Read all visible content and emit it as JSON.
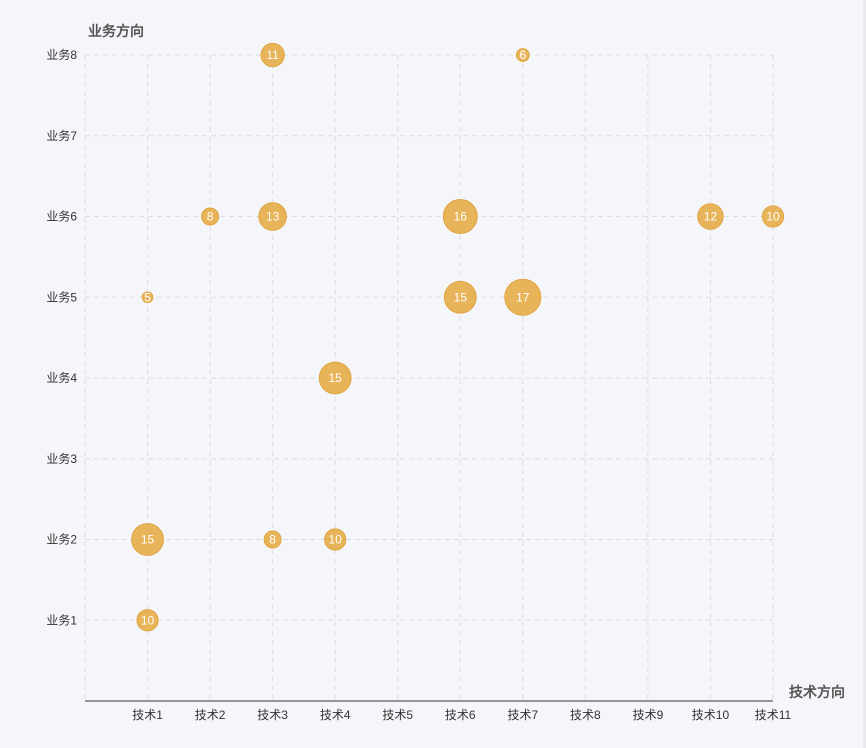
{
  "chart_data": {
    "type": "scatter",
    "title": "",
    "xlabel": "技术方向",
    "ylabel": "业务方向",
    "x_categories": [
      "技术1",
      "技术2",
      "技术3",
      "技术4",
      "技术5",
      "技术6",
      "技术7",
      "技术8",
      "技术9",
      "技术10",
      "技术11"
    ],
    "y_categories": [
      "业务1",
      "业务2",
      "业务3",
      "业务4",
      "业务5",
      "业务6",
      "业务7",
      "业务8"
    ],
    "grid": true,
    "points": [
      {
        "x": "技术3",
        "y": "业务8",
        "value": 11
      },
      {
        "x": "技术7",
        "y": "业务8",
        "value": 6
      },
      {
        "x": "技术2",
        "y": "业务6",
        "value": 8
      },
      {
        "x": "技术3",
        "y": "业务6",
        "value": 13
      },
      {
        "x": "技术6",
        "y": "业务6",
        "value": 16
      },
      {
        "x": "技术10",
        "y": "业务6",
        "value": 12
      },
      {
        "x": "技术11",
        "y": "业务6",
        "value": 10
      },
      {
        "x": "技术1",
        "y": "业务5",
        "value": 5
      },
      {
        "x": "技术6",
        "y": "业务5",
        "value": 15
      },
      {
        "x": "技术7",
        "y": "业务5",
        "value": 17
      },
      {
        "x": "技术4",
        "y": "业务4",
        "value": 15
      },
      {
        "x": "技术1",
        "y": "业务2",
        "value": 15
      },
      {
        "x": "技术3",
        "y": "业务2",
        "value": 8
      },
      {
        "x": "技术4",
        "y": "业务2",
        "value": 10
      },
      {
        "x": "技术1",
        "y": "业务1",
        "value": 10
      }
    ],
    "colors": {
      "bubble": "#e7b051",
      "bubble_stroke": "#dfa43d",
      "label": "#ffffff",
      "axis": "#333333",
      "grid": "#dcdde3",
      "text": "#333333",
      "axis_name": "#555555"
    }
  }
}
